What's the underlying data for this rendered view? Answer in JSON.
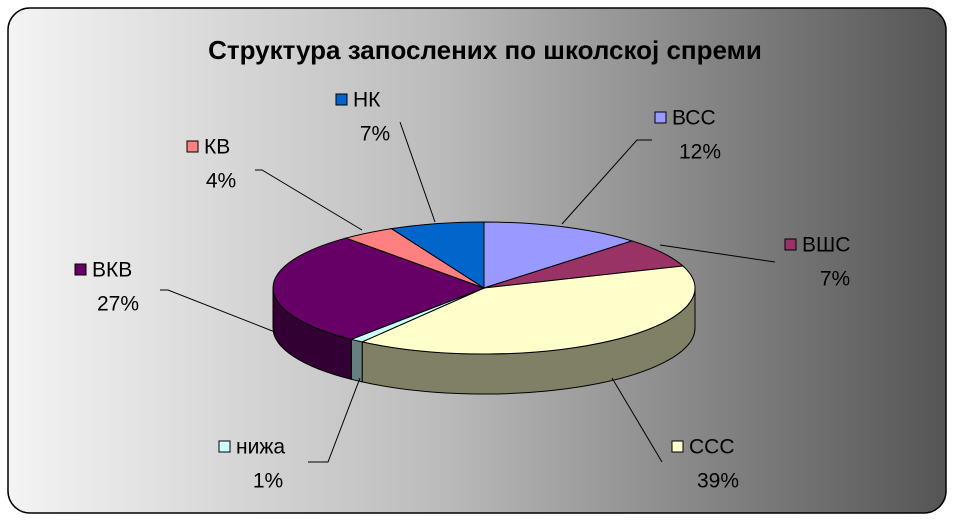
{
  "chart_data": {
    "type": "pie",
    "title": "Структура запослених по школској спреми",
    "categories": [
      "ВСС",
      "ВШС",
      "ССС",
      "нижа",
      "ВКВ",
      "КВ",
      "НК"
    ],
    "values": [
      12,
      7,
      39,
      1,
      27,
      4,
      7
    ],
    "value_labels": [
      "12%",
      "7%",
      "39%",
      "1%",
      "27%",
      "4%",
      "7%"
    ],
    "colors": [
      "#9999ff",
      "#993366",
      "#ffffcc",
      "#ccffff",
      "#660066",
      "#ff8080",
      "#0066cc"
    ],
    "three_d": true
  }
}
